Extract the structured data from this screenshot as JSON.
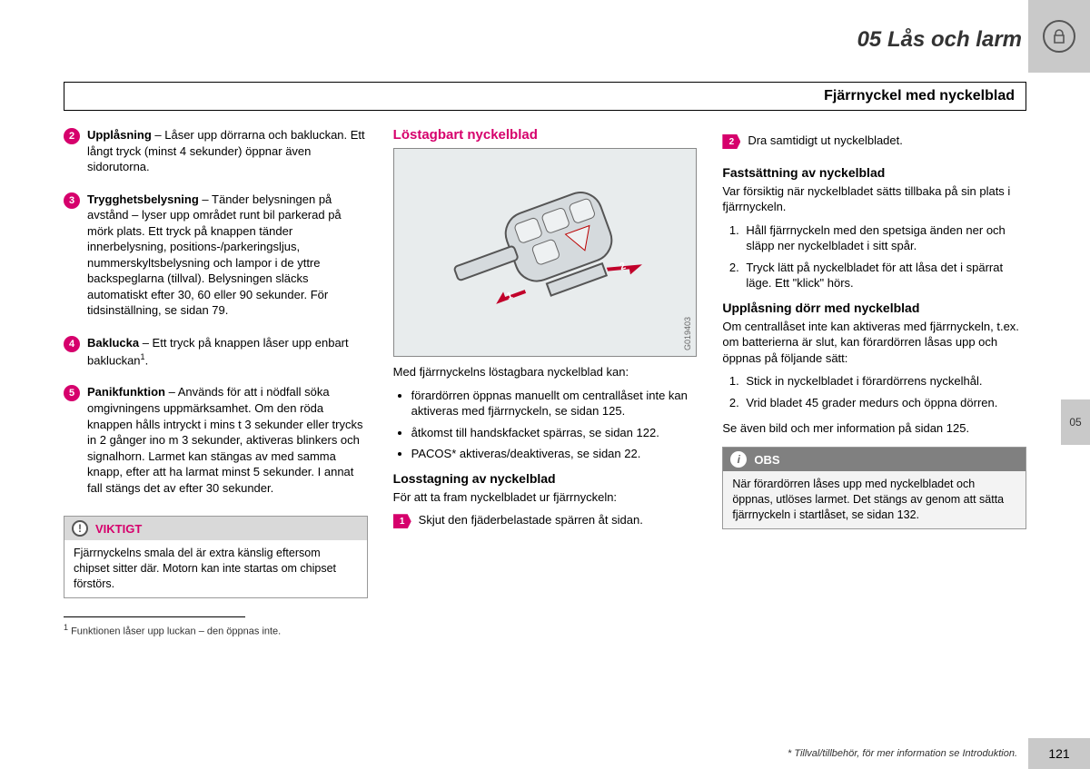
{
  "header": {
    "chapter_title": "05 Lås och larm",
    "icon_name": "padlock-icon"
  },
  "section_heading": "Fjärrnyckel med nyckelblad",
  "side_tab": "05",
  "col1": {
    "items": [
      {
        "num": "2",
        "bold": "Upplåsning",
        "text": " – Låser upp dörrarna och bakluckan. Ett långt tryck (minst 4 sekunder) öppnar även sidorutorna."
      },
      {
        "num": "3",
        "bold": "Trygghetsbelysning",
        "text": " – Tänder belysningen på avstånd – lyser upp området runt bil parkerad på mörk plats. Ett tryck på knappen tänder innerbelysning, positions-/parkeringsljus, nummerskyltsbelysning och lampor i de yttre backspeglarna (tillval). Belysningen släcks automatiskt efter 30, 60 eller 90 sekunder. För tidsinställning, se sidan 79."
      },
      {
        "num": "4",
        "bold": "Baklucka",
        "text": " – Ett tryck på knappen låser upp enbart bakluckan",
        "sup": "1",
        "tail": "."
      },
      {
        "num": "5",
        "bold": "Panikfunktion",
        "text": " – Används för att i nödfall söka omgivningens uppmärksamhet. Om den röda knappen hålls intryckt i mins t 3 sekunder eller trycks in 2 gånger ino m 3 sekunder, aktiveras blinkers och signalhorn. Larmet kan stängas av med samma knapp, efter att ha larmat minst 5 sekunder. I annat fall stängs det av efter 30 sekunder."
      }
    ],
    "important": {
      "label": "VIKTIGT",
      "text": "Fjärrnyckelns smala del är extra känslig eftersom chipset sitter där. Motorn kan inte startas om chipset förstörs."
    }
  },
  "col2": {
    "title": "Löstagbart nyckelblad",
    "figure_code": "G019403",
    "intro": "Med fjärrnyckelns löstagbara nyckelblad kan:",
    "bullets": [
      "förardörren öppnas manuellt om centrallåset inte kan aktiveras med fjärrnyckeln, se sidan 125.",
      "åtkomst till handskfacket spärras, se sidan 122.",
      "PACOS* aktiveras/deaktiveras, se sidan 22."
    ],
    "sub_heading": "Losstagning av nyckelblad",
    "sub_text": "För att ta fram nyckelbladet ur fjärrnyckeln:",
    "arrow_step": {
      "num": "1",
      "text": "Skjut den fjäderbelastade spärren åt sidan."
    }
  },
  "col3": {
    "arrow_step": {
      "num": "2",
      "text": "Dra samtidigt ut nyckelbladet."
    },
    "h1": "Fastsättning av nyckelblad",
    "h1_text": "Var försiktig när nyckelbladet sätts tillbaka på sin plats i fjärrnyckeln.",
    "h1_steps": [
      "Håll fjärrnyckeln med den spetsiga änden ner och släpp ner nyckelbladet i sitt spår.",
      "Tryck lätt på nyckelbladet för att låsa det i spärrat läge. Ett \"klick\" hörs."
    ],
    "h2": "Upplåsning dörr med nyckelblad",
    "h2_text": "Om centrallåset inte kan aktiveras med fjärrnyckeln, t.ex. om batterierna är slut, kan förardörren låsas upp och öppnas på följande sätt:",
    "h2_steps": [
      "Stick in nyckelbladet i förardörrens nyckelhål.",
      "Vrid bladet 45 grader medurs och öppna dörren."
    ],
    "after_steps": "Se även bild och mer information på sidan 125.",
    "note": {
      "label": "OBS",
      "text": "När förardörren låses upp med nyckelbladet och öppnas, utlöses larmet. Det stängs av genom att sätta fjärrnyckeln i startlåset, se sidan 132."
    }
  },
  "footnote": {
    "marker": "1",
    "text": " Funktionen låser upp luckan – den öppnas inte."
  },
  "footer": {
    "text": "* Tillval/tillbehör, för mer information se Introduktion.",
    "page": "121"
  }
}
